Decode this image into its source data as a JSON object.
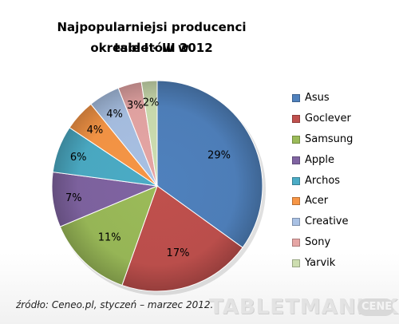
{
  "chart_data": {
    "type": "pie",
    "title_line1": "Najpopularniejsi producenci tabletów  w",
    "title_line2": "okresie I - III 2012",
    "categories": [
      "Asus",
      "Goclever",
      "Samsung",
      "Apple",
      "Archos",
      "Acer",
      "Creative",
      "Sony",
      "Yarvik"
    ],
    "values": [
      29,
      17,
      11,
      7,
      6,
      4,
      4,
      3,
      2
    ],
    "data_labels": [
      "29%",
      "17%",
      "11%",
      "7%",
      "6%",
      "4%",
      "4%",
      "3%",
      "2%"
    ],
    "colors": [
      "#4f81bd",
      "#c0504d",
      "#9bbb59",
      "#8064a2",
      "#4bacc6",
      "#f79646",
      "#a9c1e4",
      "#e6a6a5",
      "#cddeb0"
    ],
    "legend_position": "right",
    "unit": "%"
  },
  "source": "źródło: Ceneo.pl, styczeń – marzec 2012.",
  "watermark": {
    "text": "TABLETMANIAK",
    "badge": "CENEO.pl"
  }
}
